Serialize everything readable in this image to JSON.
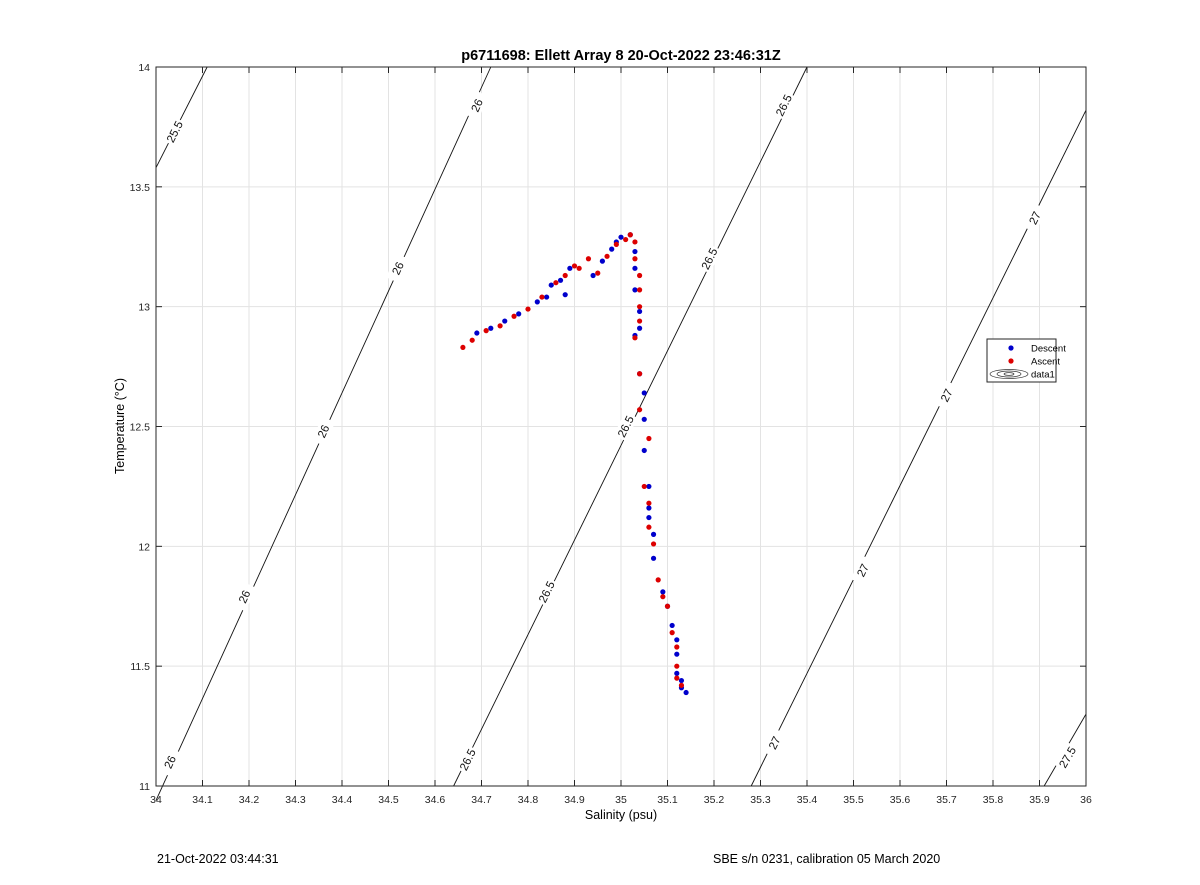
{
  "chart_data": {
    "type": "scatter",
    "title": "p6711698: Ellett Array 8 20-Oct-2022 23:46:31Z",
    "xlabel": "Salinity (psu)",
    "ylabel": "Temperature (°C)",
    "xlim": [
      34,
      36
    ],
    "ylim": [
      11,
      14
    ],
    "x_ticks": [
      "34",
      "34.1",
      "34.2",
      "34.3",
      "34.4",
      "34.5",
      "34.6",
      "34.7",
      "34.8",
      "34.9",
      "35",
      "35.1",
      "35.2",
      "35.3",
      "35.4",
      "35.5",
      "35.6",
      "35.7",
      "35.8",
      "35.9",
      "36"
    ],
    "y_ticks": [
      "11",
      "11.5",
      "12",
      "12.5",
      "13",
      "13.5",
      "14"
    ],
    "grid": true,
    "legend_position": "right",
    "legend": [
      "Descent",
      "Ascent",
      "data1"
    ],
    "series": [
      {
        "name": "Descent",
        "color": "#0000cc",
        "points": [
          [
            34.69,
            12.89
          ],
          [
            34.72,
            12.91
          ],
          [
            34.75,
            12.94
          ],
          [
            34.78,
            12.97
          ],
          [
            34.82,
            13.02
          ],
          [
            34.84,
            13.04
          ],
          [
            34.85,
            13.09
          ],
          [
            34.87,
            13.11
          ],
          [
            34.88,
            13.05
          ],
          [
            34.89,
            13.16
          ],
          [
            34.94,
            13.13
          ],
          [
            34.96,
            13.19
          ],
          [
            34.98,
            13.24
          ],
          [
            34.99,
            13.27
          ],
          [
            35.0,
            13.29
          ],
          [
            35.02,
            13.3
          ],
          [
            35.03,
            13.23
          ],
          [
            35.03,
            13.16
          ],
          [
            35.03,
            13.07
          ],
          [
            35.04,
            12.98
          ],
          [
            35.04,
            12.91
          ],
          [
            35.03,
            12.88
          ],
          [
            35.04,
            12.72
          ],
          [
            35.05,
            12.64
          ],
          [
            35.05,
            12.53
          ],
          [
            35.05,
            12.4
          ],
          [
            35.06,
            12.25
          ],
          [
            35.06,
            12.16
          ],
          [
            35.06,
            12.12
          ],
          [
            35.07,
            12.05
          ],
          [
            35.07,
            11.95
          ],
          [
            35.09,
            11.81
          ],
          [
            35.1,
            11.75
          ],
          [
            35.11,
            11.67
          ],
          [
            35.12,
            11.61
          ],
          [
            35.12,
            11.55
          ],
          [
            35.12,
            11.47
          ],
          [
            35.13,
            11.44
          ],
          [
            35.13,
            11.41
          ],
          [
            35.14,
            11.39
          ]
        ]
      },
      {
        "name": "Ascent",
        "color": "#dd0000",
        "points": [
          [
            34.66,
            12.83
          ],
          [
            34.68,
            12.86
          ],
          [
            34.71,
            12.9
          ],
          [
            34.74,
            12.92
          ],
          [
            34.77,
            12.96
          ],
          [
            34.8,
            12.99
          ],
          [
            34.83,
            13.04
          ],
          [
            34.86,
            13.1
          ],
          [
            34.88,
            13.13
          ],
          [
            34.9,
            13.17
          ],
          [
            34.91,
            13.16
          ],
          [
            34.93,
            13.2
          ],
          [
            34.95,
            13.14
          ],
          [
            34.97,
            13.21
          ],
          [
            34.99,
            13.26
          ],
          [
            35.01,
            13.28
          ],
          [
            35.02,
            13.3
          ],
          [
            35.03,
            13.27
          ],
          [
            35.03,
            13.2
          ],
          [
            35.04,
            13.13
          ],
          [
            35.04,
            13.07
          ],
          [
            35.04,
            13.0
          ],
          [
            35.04,
            12.94
          ],
          [
            35.03,
            12.87
          ],
          [
            35.04,
            12.72
          ],
          [
            35.04,
            12.57
          ],
          [
            35.06,
            12.45
          ],
          [
            35.05,
            12.25
          ],
          [
            35.06,
            12.18
          ],
          [
            35.06,
            12.08
          ],
          [
            35.07,
            12.01
          ],
          [
            35.08,
            11.86
          ],
          [
            35.09,
            11.79
          ],
          [
            35.1,
            11.75
          ],
          [
            35.11,
            11.64
          ],
          [
            35.12,
            11.58
          ],
          [
            35.12,
            11.5
          ],
          [
            35.12,
            11.45
          ],
          [
            35.13,
            11.42
          ]
        ]
      }
    ],
    "contours": [
      {
        "level": "25.5",
        "points": [
          [
            34.0,
            13.58
          ],
          [
            34.11,
            14.0
          ]
        ],
        "labels": [
          [
            34.04,
            13.73
          ]
        ]
      },
      {
        "level": "26",
        "points": [
          [
            34.0,
            10.94
          ],
          [
            34.72,
            14.0
          ]
        ],
        "labels": [
          [
            34.03,
            11.1
          ],
          [
            34.19,
            11.79
          ],
          [
            34.36,
            12.48
          ],
          [
            34.52,
            13.16
          ],
          [
            34.69,
            13.84
          ]
        ]
      },
      {
        "level": "26.5",
        "points": [
          [
            34.64,
            11.0
          ],
          [
            35.4,
            14.0
          ]
        ],
        "labels": [
          [
            34.67,
            11.11
          ],
          [
            34.84,
            11.81
          ],
          [
            35.01,
            12.5
          ],
          [
            35.19,
            13.2
          ],
          [
            35.35,
            13.84
          ]
        ]
      },
      {
        "level": "27",
        "points": [
          [
            35.28,
            11.0
          ],
          [
            36.0,
            13.82
          ]
        ],
        "labels": [
          [
            35.33,
            11.18
          ],
          [
            35.52,
            11.9
          ],
          [
            35.7,
            12.63
          ],
          [
            35.89,
            13.37
          ]
        ]
      },
      {
        "level": "27.5",
        "points": [
          [
            35.91,
            11.0
          ],
          [
            36.0,
            11.3
          ]
        ],
        "labels": [
          [
            35.96,
            11.12
          ]
        ]
      }
    ]
  },
  "footer": {
    "timestamp": "21-Oct-2022 03:44:31",
    "calibration": "SBE s/n 0231, calibration 05 March 2020"
  }
}
